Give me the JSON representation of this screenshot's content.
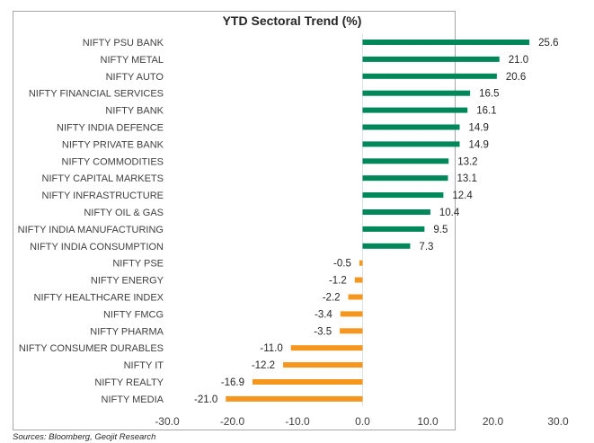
{
  "chart_data": {
    "type": "bar",
    "orientation": "horizontal",
    "title": "YTD Sectoral Trend (%)",
    "xlabel": "",
    "ylabel": "",
    "xlim": [
      -30,
      30
    ],
    "x_ticks": [
      -30,
      -20,
      -10,
      0,
      10,
      20,
      30
    ],
    "x_tick_labels": [
      "-30.0",
      "-20.0",
      "-10.0",
      "0.0",
      "10.0",
      "20.0",
      "30.0"
    ],
    "grid": false,
    "legend": "none",
    "positive_color": "#00875a",
    "negative_color": "#f5961e",
    "categories": [
      "NIFTY PSU BANK",
      "NIFTY METAL",
      "NIFTY AUTO",
      "NIFTY FINANCIAL SERVICES",
      "NIFTY BANK",
      "NIFTY INDIA DEFENCE",
      "NIFTY PRIVATE BANK",
      "NIFTY COMMODITIES",
      "NIFTY CAPITAL MARKETS",
      "NIFTY INFRASTRUCTURE",
      "NIFTY OIL & GAS",
      "NIFTY INDIA MANUFACTURING",
      "NIFTY INDIA CONSUMPTION",
      "NIFTY PSE",
      "NIFTY ENERGY",
      "NIFTY HEALTHCARE INDEX",
      "NIFTY FMCG",
      "NIFTY PHARMA",
      "NIFTY CONSUMER DURABLES",
      "NIFTY IT",
      "NIFTY REALTY",
      "NIFTY MEDIA"
    ],
    "values": [
      25.6,
      21.0,
      20.6,
      16.5,
      16.1,
      14.9,
      14.9,
      13.2,
      13.1,
      12.4,
      10.4,
      9.5,
      7.3,
      -0.5,
      -1.2,
      -2.2,
      -3.4,
      -3.5,
      -11.0,
      -12.2,
      -16.9,
      -21.0
    ],
    "value_labels": [
      "25.6",
      "21.0",
      "20.6",
      "16.5",
      "16.1",
      "14.9",
      "14.9",
      "13.2",
      "13.1",
      "12.4",
      "10.4",
      "9.5",
      "7.3",
      "-0.5",
      "-1.2",
      "-2.2",
      "-3.4",
      "-3.5",
      "-11.0",
      "-12.2",
      "-16.9",
      "-21.0"
    ]
  },
  "source_note": "Sources: Bloomberg, Geojit Research"
}
